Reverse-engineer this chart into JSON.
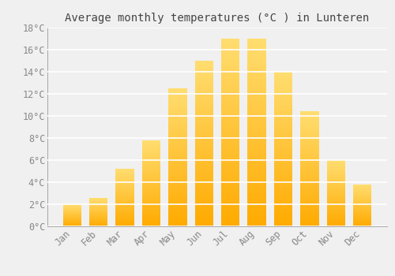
{
  "title": "Average monthly temperatures (°C ) in Lunteren",
  "months": [
    "Jan",
    "Feb",
    "Mar",
    "Apr",
    "May",
    "Jun",
    "Jul",
    "Aug",
    "Sep",
    "Oct",
    "Nov",
    "Dec"
  ],
  "values": [
    2.0,
    2.6,
    5.2,
    7.8,
    12.5,
    15.0,
    17.0,
    17.0,
    14.0,
    10.4,
    6.0,
    3.8
  ],
  "bar_color": "#FFC020",
  "bar_color_bottom": "#FFB000",
  "bar_color_top": "#FFD870",
  "ylim": [
    0,
    18
  ],
  "yticks": [
    0,
    2,
    4,
    6,
    8,
    10,
    12,
    14,
    16,
    18
  ],
  "ytick_labels": [
    "0°C",
    "2°C",
    "4°C",
    "6°C",
    "8°C",
    "10°C",
    "12°C",
    "14°C",
    "16°C",
    "18°C"
  ],
  "background_color": "#f0f0f0",
  "grid_color": "#ffffff",
  "title_fontsize": 10,
  "tick_fontsize": 8.5,
  "bar_width": 0.7
}
